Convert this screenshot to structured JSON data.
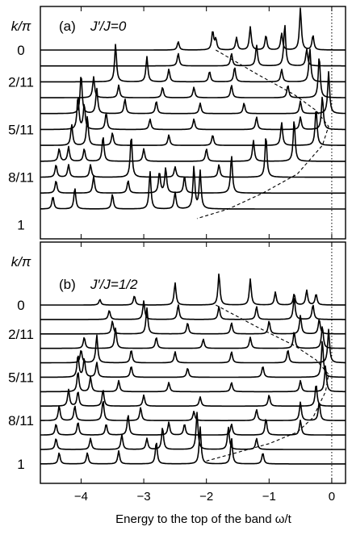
{
  "chart_data": [
    {
      "type": "line",
      "panel_label": "(a)",
      "title": "J′/J=0",
      "ylabel": "k/π",
      "xlim": [
        -4.65,
        0.22
      ],
      "xticks": [
        -4,
        -3,
        -2,
        -1,
        0
      ],
      "y_tick_labels": [
        {
          "row": 0,
          "label": "0"
        },
        {
          "row": 2,
          "label": "2/11"
        },
        {
          "row": 5,
          "label": "5/11"
        },
        {
          "row": 8,
          "label": "8/11"
        },
        {
          "row": 11,
          "label": "1"
        }
      ],
      "zero_line": 0,
      "series": [
        {
          "k_index": 0,
          "peaks": [
            [
              -1.9,
              0.45
            ],
            [
              -1.85,
              0.25
            ],
            [
              -1.52,
              0.3
            ],
            [
              -1.3,
              0.55
            ],
            [
              -1.05,
              0.35
            ],
            [
              -0.8,
              0.4
            ],
            [
              -0.5,
              1.0
            ],
            [
              -0.3,
              0.35
            ],
            [
              -2.45,
              0.2
            ]
          ]
        },
        {
          "k_index": 1,
          "peaks": [
            [
              -2.45,
              0.3
            ],
            [
              -1.6,
              0.3
            ],
            [
              -1.2,
              0.5
            ],
            [
              -0.75,
              1.0
            ],
            [
              -0.4,
              0.4
            ]
          ]
        },
        {
          "k_index": 2,
          "peaks": [
            [
              -3.45,
              0.9
            ],
            [
              -2.95,
              0.6
            ],
            [
              -2.6,
              0.3
            ],
            [
              -1.95,
              0.25
            ],
            [
              -1.55,
              0.35
            ],
            [
              -0.8,
              0.3
            ],
            [
              -0.35,
              0.8
            ]
          ]
        },
        {
          "k_index": 3,
          "peaks": [
            [
              -3.8,
              0.5
            ],
            [
              -3.4,
              0.3
            ],
            [
              -2.7,
              0.25
            ],
            [
              -2.2,
              0.25
            ],
            [
              -1.6,
              0.3
            ],
            [
              -0.7,
              0.3
            ],
            [
              -0.2,
              1.0
            ]
          ]
        },
        {
          "k_index": 4,
          "peaks": [
            [
              -4.0,
              0.95
            ],
            [
              -3.75,
              0.6
            ],
            [
              -3.3,
              0.35
            ],
            [
              -2.8,
              0.3
            ],
            [
              -2.1,
              0.25
            ],
            [
              -1.4,
              0.25
            ],
            [
              -0.5,
              0.3
            ],
            [
              -0.05,
              1.0
            ]
          ]
        },
        {
          "k_index": 5,
          "peaks": [
            [
              -4.05,
              0.8
            ],
            [
              -3.95,
              0.6
            ],
            [
              -3.6,
              0.4
            ],
            [
              -2.9,
              0.25
            ],
            [
              -2.2,
              0.25
            ],
            [
              -1.2,
              0.3
            ],
            [
              -0.5,
              0.3
            ],
            [
              -0.15,
              0.8
            ]
          ]
        },
        {
          "k_index": 6,
          "peaks": [
            [
              -4.15,
              0.5
            ],
            [
              -3.9,
              0.7
            ],
            [
              -3.5,
              0.3
            ],
            [
              -2.6,
              0.25
            ],
            [
              -1.9,
              0.25
            ],
            [
              -0.8,
              0.55
            ],
            [
              -0.25,
              0.9
            ]
          ]
        },
        {
          "k_index": 7,
          "peaks": [
            [
              -4.35,
              0.3
            ],
            [
              -4.2,
              0.35
            ],
            [
              -3.95,
              0.3
            ],
            [
              -3.65,
              0.6
            ],
            [
              -3.0,
              0.3
            ],
            [
              -2.0,
              0.3
            ],
            [
              -1.25,
              0.5
            ],
            [
              -0.6,
              1.0
            ]
          ]
        },
        {
          "k_index": 8,
          "peaks": [
            [
              -4.4,
              0.3
            ],
            [
              -4.2,
              0.3
            ],
            [
              -3.85,
              0.3
            ],
            [
              -3.2,
              1.0
            ],
            [
              -2.5,
              0.25
            ],
            [
              -1.8,
              0.3
            ],
            [
              -1.05,
              1.0
            ]
          ]
        },
        {
          "k_index": 9,
          "peaks": [
            [
              -4.4,
              0.3
            ],
            [
              -3.8,
              0.4
            ],
            [
              -3.25,
              0.3
            ],
            [
              -2.75,
              0.5
            ],
            [
              -2.65,
              0.6
            ],
            [
              -2.35,
              0.4
            ],
            [
              -1.6,
              0.9
            ]
          ]
        },
        {
          "k_index": 10,
          "peaks": [
            [
              -4.45,
              0.3
            ],
            [
              -4.1,
              0.5
            ],
            [
              -3.5,
              0.35
            ],
            [
              -2.9,
              0.9
            ],
            [
              -2.5,
              0.4
            ],
            [
              -2.2,
              1.0
            ],
            [
              -2.1,
              0.9
            ]
          ]
        }
      ],
      "dispersion_curve": [
        [
          -1.85,
          0
        ],
        [
          -1.2,
          1.5
        ],
        [
          -0.6,
          2.8
        ],
        [
          -0.25,
          3.8
        ],
        [
          -0.05,
          4.8
        ],
        [
          -0.15,
          6.0
        ],
        [
          -0.55,
          7.8
        ],
        [
          -1.1,
          9.0
        ],
        [
          -1.65,
          10.0
        ],
        [
          -2.15,
          10.6
        ]
      ]
    },
    {
      "type": "line",
      "panel_label": "(b)",
      "title": "J′/J=1/2",
      "ylabel": "k/π",
      "xlabel": "Energy to the top of the band  ω/t",
      "xlim": [
        -4.65,
        0.22
      ],
      "xticks": [
        -4,
        -3,
        -2,
        -1,
        0
      ],
      "y_tick_labels": [
        {
          "row": 0,
          "label": "0"
        },
        {
          "row": 2,
          "label": "2/11"
        },
        {
          "row": 5,
          "label": "5/11"
        },
        {
          "row": 8,
          "label": "8/11"
        },
        {
          "row": 11,
          "label": "1"
        }
      ],
      "zero_line": 0,
      "series": [
        {
          "k_index": 0,
          "peaks": [
            [
              -3.7,
              0.15
            ],
            [
              -3.15,
              0.25
            ],
            [
              -2.5,
              0.6
            ],
            [
              -1.8,
              0.85
            ],
            [
              -1.3,
              0.7
            ],
            [
              -0.9,
              0.35
            ],
            [
              -0.6,
              0.3
            ],
            [
              -0.4,
              0.4
            ],
            [
              -0.25,
              0.3
            ]
          ]
        },
        {
          "k_index": 1,
          "peaks": [
            [
              -3.55,
              0.25
            ],
            [
              -3.0,
              0.5
            ],
            [
              -2.45,
              0.4
            ],
            [
              -1.8,
              0.35
            ],
            [
              -1.2,
              0.35
            ],
            [
              -0.6,
              0.6
            ],
            [
              -0.3,
              0.4
            ]
          ]
        },
        {
          "k_index": 2,
          "peaks": [
            [
              -3.5,
              0.35
            ],
            [
              -2.95,
              0.7
            ],
            [
              -2.3,
              0.3
            ],
            [
              -1.6,
              0.3
            ],
            [
              -1.0,
              0.35
            ],
            [
              -0.5,
              0.5
            ],
            [
              -0.2,
              0.4
            ]
          ]
        },
        {
          "k_index": 3,
          "peaks": [
            [
              -3.95,
              0.3
            ],
            [
              -3.45,
              0.55
            ],
            [
              -2.8,
              0.3
            ],
            [
              -2.05,
              0.25
            ],
            [
              -1.3,
              0.3
            ],
            [
              -0.6,
              0.45
            ],
            [
              -0.15,
              0.6
            ]
          ]
        },
        {
          "k_index": 4,
          "peaks": [
            [
              -4.0,
              0.35
            ],
            [
              -3.75,
              0.75
            ],
            [
              -3.2,
              0.35
            ],
            [
              -2.5,
              0.3
            ],
            [
              -1.6,
              0.3
            ],
            [
              -0.7,
              0.35
            ],
            [
              -0.05,
              0.9
            ]
          ]
        },
        {
          "k_index": 5,
          "peaks": [
            [
              -4.05,
              0.6
            ],
            [
              -3.95,
              0.5
            ],
            [
              -3.75,
              0.4
            ],
            [
              -3.2,
              0.3
            ],
            [
              -2.3,
              0.25
            ],
            [
              -1.1,
              0.3
            ],
            [
              -0.15,
              1.0
            ]
          ]
        },
        {
          "k_index": 6,
          "peaks": [
            [
              -4.05,
              0.55
            ],
            [
              -3.85,
              0.4
            ],
            [
              -3.4,
              0.3
            ],
            [
              -2.6,
              0.25
            ],
            [
              -1.6,
              0.25
            ],
            [
              -0.5,
              0.3
            ],
            [
              -0.1,
              0.7
            ]
          ]
        },
        {
          "k_index": 7,
          "peaks": [
            [
              -4.2,
              0.45
            ],
            [
              -4.05,
              0.4
            ],
            [
              -3.65,
              0.45
            ],
            [
              -3.0,
              0.3
            ],
            [
              -2.1,
              0.25
            ],
            [
              -1.0,
              0.3
            ],
            [
              -0.25,
              0.6
            ]
          ]
        },
        {
          "k_index": 8,
          "peaks": [
            [
              -4.35,
              0.4
            ],
            [
              -4.1,
              0.4
            ],
            [
              -3.65,
              0.55
            ],
            [
              -3.05,
              0.35
            ],
            [
              -2.2,
              0.25
            ],
            [
              -1.2,
              0.3
            ],
            [
              -0.5,
              0.5
            ],
            [
              -0.2,
              0.5
            ]
          ]
        },
        {
          "k_index": 9,
          "peaks": [
            [
              -4.4,
              0.3
            ],
            [
              -4.05,
              0.35
            ],
            [
              -3.6,
              0.3
            ],
            [
              -3.25,
              0.55
            ],
            [
              -2.6,
              0.35
            ],
            [
              -2.35,
              0.3
            ],
            [
              -1.6,
              0.3
            ],
            [
              -1.05,
              0.45
            ],
            [
              -0.5,
              0.4
            ]
          ]
        },
        {
          "k_index": 10,
          "peaks": [
            [
              -4.4,
              0.3
            ],
            [
              -3.85,
              0.3
            ],
            [
              -3.35,
              0.4
            ],
            [
              -2.95,
              0.3
            ],
            [
              -2.7,
              0.6
            ],
            [
              -2.15,
              1.0
            ],
            [
              -1.65,
              0.6
            ],
            [
              -1.2,
              0.3
            ]
          ]
        },
        {
          "k_index": 11,
          "peaks": [
            [
              -4.35,
              0.3
            ],
            [
              -3.9,
              0.3
            ],
            [
              -3.4,
              0.35
            ],
            [
              -2.8,
              0.6
            ],
            [
              -2.1,
              1.0
            ],
            [
              -1.6,
              0.7
            ],
            [
              -1.1,
              0.3
            ]
          ]
        }
      ],
      "dispersion_curve": [
        [
          -1.85,
          0
        ],
        [
          -1.2,
          1.5
        ],
        [
          -0.6,
          2.8
        ],
        [
          -0.25,
          3.8
        ],
        [
          -0.05,
          4.8
        ],
        [
          -0.1,
          6.0
        ],
        [
          -0.3,
          7.8
        ],
        [
          -0.55,
          8.8
        ],
        [
          -1.0,
          9.6
        ],
        [
          -2.0,
          10.8
        ]
      ]
    }
  ]
}
